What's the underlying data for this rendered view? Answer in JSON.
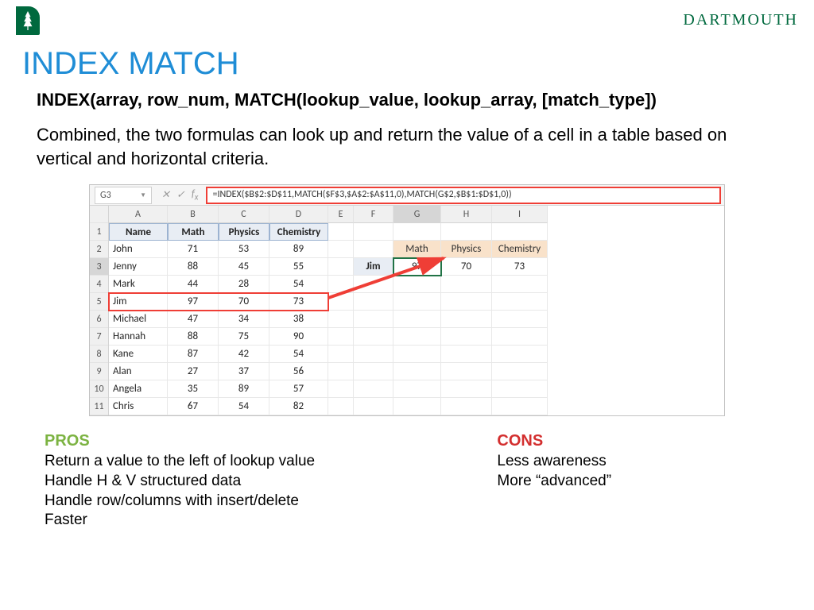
{
  "brand": "DARTMOUTH",
  "title": "INDEX MATCH",
  "syntax": "INDEX(array, row_num, MATCH(lookup_value, lookup_array, [match_type])",
  "description": "Combined, the two formulas can look up and return the value of a cell in a table based on vertical and horizontal criteria.",
  "excel": {
    "namebox": "G3",
    "formula": "=INDEX($B$2:$D$11,MATCH($F$3,$A$2:$A$11,0),MATCH(G$2,$B$1:$D$1,0))",
    "col_letters": [
      "A",
      "B",
      "C",
      "D",
      "E",
      "F",
      "G",
      "H",
      "I"
    ],
    "selected_col_index": 6,
    "row_count": 11,
    "selected_row": 3,
    "highlight_row": 5,
    "main_headers": [
      "Name",
      "Math",
      "Physics",
      "Chemistry"
    ],
    "rows": [
      [
        "John",
        "71",
        "53",
        "89"
      ],
      [
        "Jenny",
        "88",
        "45",
        "55"
      ],
      [
        "Mark",
        "44",
        "28",
        "54"
      ],
      [
        "Jim",
        "97",
        "70",
        "73"
      ],
      [
        "Michael",
        "47",
        "34",
        "38"
      ],
      [
        "Hannah",
        "88",
        "75",
        "90"
      ],
      [
        "Kane",
        "87",
        "42",
        "54"
      ],
      [
        "Alan",
        "27",
        "37",
        "56"
      ],
      [
        "Angela",
        "35",
        "89",
        "57"
      ],
      [
        "Chris",
        "67",
        "54",
        "82"
      ]
    ],
    "lookup_headers_row": 2,
    "lookup_headers": [
      "Math",
      "Physics",
      "Chemistry"
    ],
    "lookup_data_row": 3,
    "lookup_side": "Jim",
    "lookup_values": [
      "97",
      "70",
      "73"
    ],
    "selected_cell_value": "97",
    "colors": {
      "red_frame": "#ef3e36",
      "green_select": "#217346",
      "header_fill": "#e8edf4",
      "tan_fill": "#f9e2ca"
    }
  },
  "pros": {
    "heading": "PROS",
    "items": [
      "Return a value to the left of lookup value",
      "Handle H & V structured data",
      "Handle row/columns with insert/delete",
      "Faster"
    ]
  },
  "cons": {
    "heading": "CONS",
    "items": [
      "Less awareness",
      "More “advanced”"
    ]
  }
}
